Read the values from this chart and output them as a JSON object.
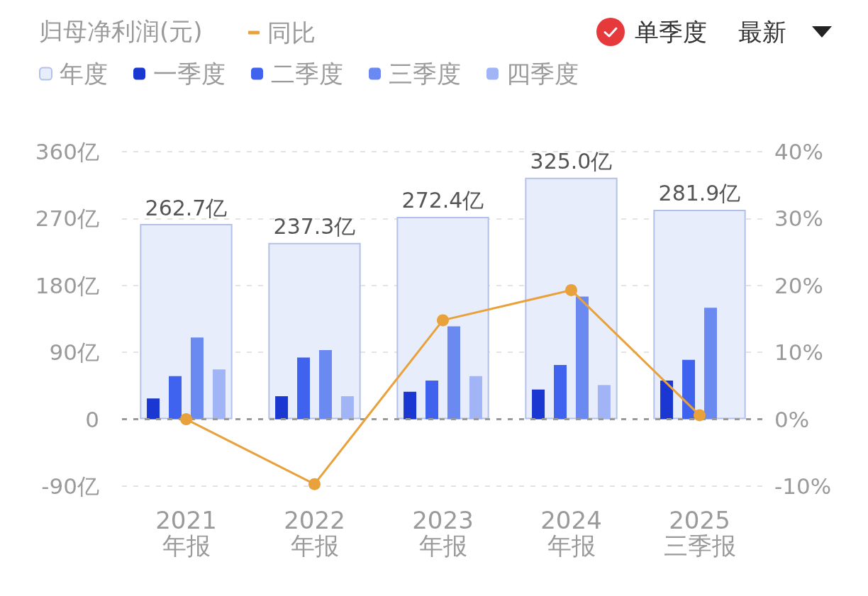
{
  "chart_data": {
    "type": "bar",
    "title": "归母净利润(元)",
    "categories": [
      "2021\n年报",
      "2022\n年报",
      "2023\n年报",
      "2024\n年报",
      "2025\n三季报"
    ],
    "series": [
      {
        "name": "年度",
        "color": "#e8edfc",
        "values": [
          262.7,
          237.3,
          272.4,
          325.0,
          281.9
        ],
        "value_labels": [
          "262.7亿",
          "237.3亿",
          "272.4亿",
          "325.0亿",
          "281.9亿"
        ]
      },
      {
        "name": "一季度",
        "color": "#1a37d2",
        "values": [
          28,
          31,
          37,
          40,
          52
        ]
      },
      {
        "name": "二季度",
        "color": "#3f63ef",
        "values": [
          58,
          83,
          52,
          73,
          80
        ]
      },
      {
        "name": "三季度",
        "color": "#6a8af2",
        "values": [
          110,
          93,
          125,
          165,
          150
        ]
      },
      {
        "name": "四季度",
        "color": "#a0b4f6",
        "values": [
          67,
          31,
          58,
          46,
          null
        ]
      },
      {
        "name": "同比",
        "type": "line",
        "axis": "y2",
        "color": "#e9a13b",
        "values": [
          0,
          -9.7,
          14.8,
          19.3,
          0.6
        ]
      }
    ],
    "ylim": [
      -90,
      360
    ],
    "yticks": [
      {
        "value": -90,
        "label": "-90亿"
      },
      0,
      {
        "value": 90,
        "label": "90亿"
      },
      {
        "value": 180,
        "label": "180亿"
      },
      {
        "value": 270,
        "label": "270亿"
      },
      {
        "value": 360,
        "label": "360亿"
      }
    ],
    "y2lim": [
      -10,
      40
    ],
    "y2ticks": [
      {
        "value": -10,
        "label": "-10%"
      },
      {
        "value": 0,
        "label": "0%"
      },
      {
        "value": 10,
        "label": "10%"
      },
      {
        "value": 20,
        "label": "20%"
      },
      {
        "value": 30,
        "label": "30%"
      },
      {
        "value": 40,
        "label": "40%"
      }
    ],
    "ref_lines": [
      {
        "axis": "y",
        "value": 0,
        "color": "#9a9a9a",
        "line_style": "dashed"
      }
    ],
    "grid": "y",
    "legend": "top left",
    "marker": "circle",
    "line_style": "solid",
    "annotations": [
      "单季度",
      "最新"
    ]
  }
}
